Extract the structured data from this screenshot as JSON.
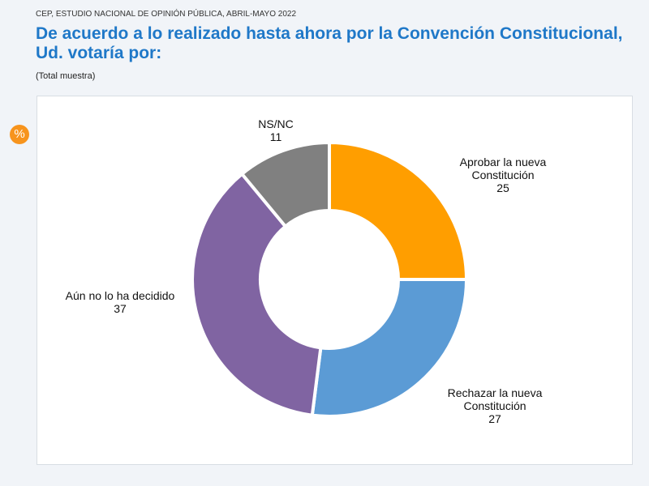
{
  "header": {
    "source": "CEP, ESTUDIO NACIONAL DE OPINIÓN PÚBLICA, ABRIL-MAYO 2022",
    "title": "De acuerdo a lo realizado hasta ahora por la Convención Constitucional, Ud. votaría por:",
    "subtitle": "(Total muestra)",
    "unit_badge": "%"
  },
  "chart_data": {
    "type": "pie",
    "variant": "donut",
    "title": "",
    "start": "top",
    "direction": "clockwise",
    "categories": [
      "Aprobar la nueva Constitución",
      "Rechazar la nueva Constitución",
      "Aún no lo ha decidido",
      "NS/NC"
    ],
    "values": [
      25,
      27,
      37,
      11
    ],
    "colors": [
      "#ff9e00",
      "#5b9bd5",
      "#8064a2",
      "#808080"
    ],
    "label_lines": [
      [
        "Aprobar la nueva",
        "Constitución"
      ],
      [
        "Rechazar la nueva",
        "Constitución"
      ],
      [
        "Aún no lo ha decidido"
      ],
      [
        "NS/NC"
      ]
    ]
  }
}
